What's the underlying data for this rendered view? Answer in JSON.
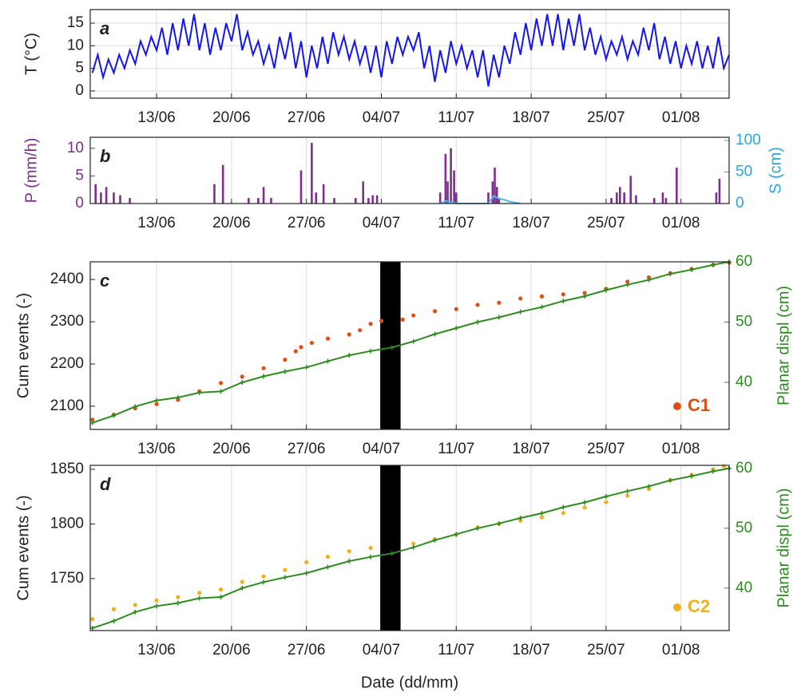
{
  "chart_data": [
    {
      "type": "line",
      "panel_label": "a",
      "ylabel": "T (°C)",
      "grid": "both",
      "xlim": [
        5.8,
        65.5
      ],
      "ylim": [
        -1.6,
        18
      ],
      "yticks": [
        0,
        5,
        10,
        15
      ],
      "xticks": [
        {
          "value": 12,
          "label": "13/06"
        },
        {
          "value": 19,
          "label": "20/06"
        },
        {
          "value": 26,
          "label": "27/06"
        },
        {
          "value": 33,
          "label": "04/07"
        },
        {
          "value": 40,
          "label": "11/07"
        },
        {
          "value": 47,
          "label": "18/07"
        },
        {
          "value": 54,
          "label": "25/07"
        },
        {
          "value": 61,
          "label": "01/08"
        }
      ],
      "series": [
        {
          "color": "#1515f0",
          "x": [
            6,
            6.5,
            7,
            7.5,
            8,
            8.5,
            9,
            9.5,
            10,
            10.5,
            11,
            11.5,
            12,
            12.5,
            13,
            13.5,
            14,
            14.5,
            15,
            15.5,
            16,
            16.5,
            17,
            17.5,
            18,
            18.5,
            19,
            19.5,
            20,
            20.5,
            21,
            21.5,
            22,
            22.5,
            23,
            23.5,
            24,
            24.5,
            25,
            25.5,
            26,
            26.5,
            27,
            27.5,
            28,
            28.5,
            29,
            29.5,
            30,
            30.5,
            31,
            31.5,
            32,
            32.5,
            33,
            33.5,
            34,
            34.5,
            35,
            35.5,
            36,
            36.5,
            37,
            37.5,
            38,
            38.5,
            39,
            39.5,
            40,
            40.5,
            41,
            41.5,
            42,
            42.5,
            43,
            43.5,
            44,
            44.5,
            45,
            45.5,
            46,
            46.5,
            47,
            47.5,
            48,
            48.5,
            49,
            49.5,
            50,
            50.5,
            51,
            51.5,
            52,
            52.5,
            53,
            53.5,
            54,
            54.5,
            55,
            55.5,
            56,
            56.5,
            57,
            57.5,
            58,
            58.5,
            59,
            59.5,
            60,
            60.5,
            61,
            61.5,
            62,
            62.5,
            63,
            63.5,
            64,
            64.5,
            65,
            65.5
          ],
          "values": [
            4,
            8,
            3,
            7,
            4,
            8,
            5,
            9,
            6,
            11,
            8,
            12,
            9,
            14,
            8,
            15,
            9,
            16,
            10,
            17,
            9,
            15,
            8,
            14,
            9,
            15,
            11,
            17,
            9,
            13,
            8,
            11,
            6,
            10,
            5,
            12,
            7,
            13,
            5,
            11,
            3,
            10,
            5,
            12,
            6,
            13,
            8,
            12,
            7,
            11,
            6,
            10,
            4,
            10,
            3,
            11,
            6,
            12,
            8,
            12,
            9,
            13,
            5,
            10,
            2,
            9,
            4,
            11,
            6,
            10,
            5,
            9,
            3,
            9,
            1,
            8,
            3,
            10,
            6,
            13,
            8,
            15,
            9,
            16,
            10,
            17,
            10,
            17,
            9,
            16,
            10,
            17,
            9,
            14,
            8,
            12,
            7,
            11,
            8,
            12,
            7,
            11,
            8,
            14,
            9,
            15,
            7,
            12,
            6,
            11,
            5,
            10,
            6,
            11,
            5,
            10,
            5,
            12,
            5,
            8
          ]
        }
      ]
    },
    {
      "type": "bar",
      "panel_label": "b",
      "ylabel": "P (mm/h)",
      "y2label": "S (cm)",
      "grid": "x",
      "ycolor": "#7e2f8e",
      "y2color": "#2aa4e0",
      "xlim": [
        5.8,
        65.5
      ],
      "ylim": [
        0,
        12
      ],
      "yticks": [
        0,
        5,
        10
      ],
      "y2lim": [
        0,
        105
      ],
      "y2ticks": [
        0,
        50,
        100
      ],
      "xticks": [
        {
          "value": 12,
          "label": "13/06"
        },
        {
          "value": 19,
          "label": "20/06"
        },
        {
          "value": 26,
          "label": "27/06"
        },
        {
          "value": 33,
          "label": "04/07"
        },
        {
          "value": 40,
          "label": "11/07"
        },
        {
          "value": 47,
          "label": "18/07"
        },
        {
          "value": 54,
          "label": "25/07"
        },
        {
          "value": 61,
          "label": "01/08"
        }
      ],
      "series": [
        {
          "color": "#7e2f8e",
          "x": [
            6.3,
            6.8,
            7.3,
            8,
            8.6,
            9.5,
            17.4,
            18.2,
            20.6,
            21.5,
            22,
            22.7,
            25.5,
            26.5,
            26.9,
            27.6,
            28.6,
            30.6,
            31.3,
            31.8,
            32.2,
            32.6,
            38.5,
            39,
            39.2,
            39.5,
            39.8,
            40,
            43,
            43.4,
            43.6,
            43.8,
            44,
            54.5,
            55,
            55.3,
            55.7,
            56.3,
            56.8,
            58.5,
            59.3,
            59.6,
            60.6,
            64.3,
            64.6
          ],
          "values": [
            3.5,
            2,
            3,
            2,
            1.5,
            1,
            3.5,
            7,
            1,
            1,
            3,
            1,
            6,
            11,
            2,
            3.5,
            1,
            1,
            4,
            1,
            1.5,
            1.5,
            2,
            9,
            4,
            10,
            6,
            2,
            2,
            4,
            6.5,
            3,
            1,
            1,
            2,
            3,
            2,
            5,
            1.5,
            1,
            2,
            1,
            6.5,
            2,
            4.5
          ]
        },
        {
          "type": "line",
          "axis": "y2",
          "color": "#4db8ee",
          "x": [
            38.5,
            39,
            39.5,
            40,
            43,
            43.5,
            44,
            44.5,
            45,
            46
          ],
          "values": [
            0,
            4,
            2,
            0,
            0,
            12,
            8,
            6,
            3,
            0
          ]
        }
      ]
    },
    {
      "type": "scatter",
      "panel_label": "c",
      "ylabel": "Cum events (-)",
      "y2label": "Planar displ (cm)",
      "grid": "x",
      "y2color": "#2e8b1f",
      "legend": "lower right",
      "highlight_x": [
        32.9,
        34.8
      ],
      "xlim": [
        5.8,
        65.5
      ],
      "ylim": [
        2045,
        2442
      ],
      "yticks": [
        2100,
        2200,
        2300,
        2400
      ],
      "y2lim": [
        32.2,
        60
      ],
      "y2ticks": [
        40,
        50,
        60
      ],
      "xticks": [
        {
          "value": 12,
          "label": "13/06"
        },
        {
          "value": 19,
          "label": "20/06"
        },
        {
          "value": 26,
          "label": "27/06"
        },
        {
          "value": 33,
          "label": "04/07"
        },
        {
          "value": 40,
          "label": "11/07"
        },
        {
          "value": 47,
          "label": "18/07"
        },
        {
          "value": 54,
          "label": "25/07"
        },
        {
          "value": 61,
          "label": "01/08"
        }
      ],
      "series": [
        {
          "name": "C1",
          "color": "#d95319",
          "x": [
            6,
            8,
            10,
            12,
            14,
            16,
            18,
            20,
            22,
            24,
            25,
            25.5,
            26.5,
            28,
            30,
            31,
            32,
            33,
            35,
            36,
            38,
            40,
            42,
            44,
            46,
            48,
            50,
            52,
            54,
            56,
            58,
            60,
            62,
            64,
            65.5
          ],
          "values": [
            2068,
            2080,
            2095,
            2105,
            2115,
            2135,
            2155,
            2170,
            2190,
            2210,
            2230,
            2240,
            2250,
            2260,
            2270,
            2280,
            2295,
            2302,
            2305,
            2315,
            2325,
            2330,
            2340,
            2345,
            2355,
            2360,
            2365,
            2368,
            2378,
            2395,
            2405,
            2415,
            2425,
            2435,
            2440
          ]
        },
        {
          "type": "line",
          "axis": "y2",
          "color": "#2e8b1f",
          "x": [
            6,
            8,
            10,
            12,
            14,
            16,
            18,
            20,
            22,
            24,
            26,
            28,
            30,
            32,
            34,
            36,
            38,
            40,
            42,
            44,
            46,
            48,
            50,
            52,
            54,
            56,
            58,
            60,
            62,
            64,
            65.5
          ],
          "values": [
            33.3,
            34.5,
            36,
            37,
            37.5,
            38.3,
            38.5,
            40,
            41,
            41.8,
            42.5,
            43.5,
            44.5,
            45.2,
            45.8,
            46.8,
            48,
            49,
            50,
            50.8,
            51.7,
            52.5,
            53.5,
            54.3,
            55.3,
            56.2,
            57,
            58,
            58.7,
            59.5,
            60
          ]
        }
      ]
    },
    {
      "type": "scatter",
      "panel_label": "d",
      "ylabel": "Cum events (-)",
      "y2label": "Planar displ (cm)",
      "xlabel": "Date (dd/mm)",
      "grid": "x",
      "y2color": "#2e8b1f",
      "legend": "lower right",
      "highlight_x": [
        32.9,
        34.8
      ],
      "xlim": [
        5.8,
        65.5
      ],
      "ylim": [
        1702.5,
        1853.6
      ],
      "yticks": [
        1750,
        1800,
        1850
      ],
      "y2lim": [
        32.9,
        60.5
      ],
      "y2ticks": [
        40,
        50,
        60
      ],
      "xticks": [
        {
          "value": 12,
          "label": "13/06"
        },
        {
          "value": 19,
          "label": "20/06"
        },
        {
          "value": 26,
          "label": "27/06"
        },
        {
          "value": 33,
          "label": "04/07"
        },
        {
          "value": 40,
          "label": "11/07"
        },
        {
          "value": 47,
          "label": "18/07"
        },
        {
          "value": 54,
          "label": "25/07"
        },
        {
          "value": 61,
          "label": "01/08"
        }
      ],
      "series": [
        {
          "name": "C2",
          "color": "#edb120",
          "x": [
            6,
            8,
            10,
            12,
            14,
            16,
            18,
            20,
            22,
            24,
            26,
            28,
            30,
            32,
            36,
            38,
            40,
            42,
            44,
            46,
            48,
            50,
            52,
            54,
            56,
            58,
            60,
            62,
            64,
            65
          ],
          "values": [
            1713,
            1722,
            1726,
            1730,
            1733,
            1737,
            1740,
            1747,
            1752,
            1758,
            1765,
            1770,
            1775,
            1778,
            1782,
            1786,
            1790,
            1797,
            1800,
            1803,
            1806,
            1810,
            1815,
            1820,
            1826,
            1832,
            1840,
            1845,
            1850,
            1853
          ]
        },
        {
          "type": "line",
          "axis": "y2",
          "color": "#2e8b1f",
          "x": [
            6,
            8,
            10,
            12,
            14,
            16,
            18,
            20,
            22,
            24,
            26,
            28,
            30,
            32,
            34,
            36,
            38,
            40,
            42,
            44,
            46,
            48,
            50,
            52,
            54,
            56,
            58,
            60,
            62,
            64,
            65.5
          ],
          "values": [
            33.3,
            34.5,
            36,
            37,
            37.5,
            38.3,
            38.5,
            40,
            41,
            41.8,
            42.5,
            43.5,
            44.5,
            45.2,
            45.8,
            46.8,
            48,
            49,
            50,
            50.8,
            51.7,
            52.5,
            53.5,
            54.3,
            55.3,
            56.2,
            57,
            58,
            58.7,
            59.5,
            60
          ]
        }
      ]
    }
  ]
}
